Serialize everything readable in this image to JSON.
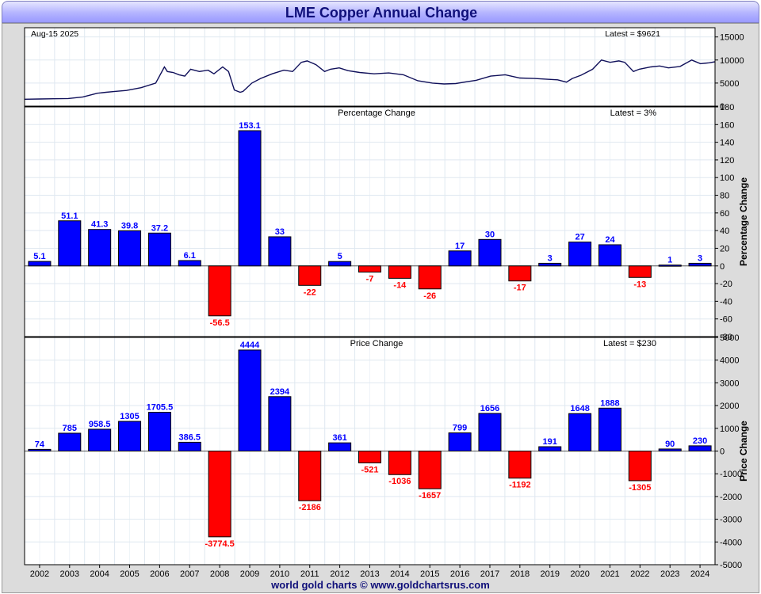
{
  "title": "LME Copper Annual Change",
  "footer": "world gold charts © www.goldchartsrus.com",
  "colors": {
    "positive": "#0000ff",
    "negative": "#ff0000",
    "line": "#10105a",
    "title": "#10107a"
  },
  "chart_data": [
    {
      "type": "line",
      "name": "price",
      "date_label": "Aug-15  2025",
      "latest_label": "Latest = $9621",
      "ylim": [
        0,
        17000
      ],
      "yticks": [
        0,
        5000,
        10000,
        15000
      ],
      "x_range": [
        2001.5,
        2025.2
      ],
      "x": [
        2001.5,
        2002.0,
        2002.5,
        2003.0,
        2003.5,
        2004.0,
        2004.3,
        2004.6,
        2005.0,
        2005.5,
        2006.0,
        2006.3,
        2006.4,
        2006.6,
        2006.8,
        2007.0,
        2007.2,
        2007.5,
        2007.8,
        2008.0,
        2008.3,
        2008.5,
        2008.7,
        2008.9,
        2009.0,
        2009.3,
        2009.6,
        2010.0,
        2010.4,
        2010.7,
        2011.0,
        2011.2,
        2011.5,
        2011.8,
        2012.0,
        2012.3,
        2012.6,
        2013.0,
        2013.5,
        2014.0,
        2014.5,
        2015.0,
        2015.5,
        2015.9,
        2016.3,
        2016.7,
        2017.0,
        2017.5,
        2018.0,
        2018.5,
        2019.0,
        2019.5,
        2019.8,
        2020.1,
        2020.3,
        2020.6,
        2021.0,
        2021.3,
        2021.6,
        2021.9,
        2022.1,
        2022.4,
        2022.6,
        2023.0,
        2023.3,
        2023.6,
        2024.0,
        2024.4,
        2024.7,
        2025.0,
        2025.2
      ],
      "values": [
        1500,
        1550,
        1600,
        1650,
        2000,
        2800,
        3000,
        3200,
        3400,
        4000,
        5000,
        8500,
        7500,
        7300,
        6800,
        6500,
        8000,
        7500,
        7800,
        7000,
        8500,
        7500,
        3500,
        3000,
        3200,
        5000,
        6000,
        7000,
        7800,
        7500,
        9500,
        9800,
        9000,
        7500,
        8000,
        8300,
        7700,
        7300,
        7000,
        7200,
        6800,
        5500,
        5000,
        4800,
        4900,
        5300,
        5600,
        6500,
        6800,
        6100,
        6000,
        5800,
        5700,
        5200,
        6000,
        6700,
        8000,
        10000,
        9500,
        9800,
        9500,
        7500,
        8000,
        8500,
        8700,
        8300,
        8600,
        10000,
        9200,
        9400,
        9621
      ]
    },
    {
      "type": "bar",
      "name": "percentage",
      "title": "Percentage Change",
      "latest_label": "Latest = 3%",
      "ylabel": "Percentage Change",
      "ylim": [
        -80,
        180
      ],
      "yticks": [
        -80,
        -60,
        -40,
        -20,
        0,
        20,
        40,
        60,
        80,
        100,
        120,
        140,
        160,
        180
      ],
      "categories": [
        "2002",
        "2003",
        "2004",
        "2005",
        "2006",
        "2007",
        "2008",
        "2009",
        "2010",
        "2011",
        "2012",
        "2013",
        "2014",
        "2015",
        "2016",
        "2017",
        "2018",
        "2019",
        "2020",
        "2021",
        "2022",
        "2023",
        "2024"
      ],
      "values": [
        5.1,
        51.1,
        41.3,
        39.8,
        37.2,
        6.1,
        -56.5,
        153.1,
        33,
        -22,
        5,
        -7,
        -14,
        -26,
        17,
        30,
        -17,
        3,
        27,
        24,
        -13,
        1,
        3
      ],
      "labels": [
        "5.1",
        "51.1",
        "41.3",
        "39.8",
        "37.2",
        "6.1",
        "-56.5",
        "153.1",
        "33",
        "-22",
        "5",
        "-7",
        "-14",
        "-26",
        "17",
        "30",
        "-17",
        "3",
        "27",
        "24",
        "-13",
        "1",
        "3"
      ]
    },
    {
      "type": "bar",
      "name": "price-change",
      "title": "Price Change",
      "latest_label": "Latest = $230",
      "ylabel": "Price Change",
      "ylim": [
        -5000,
        5000
      ],
      "yticks": [
        -5000,
        -4000,
        -3000,
        -2000,
        -1000,
        0,
        1000,
        2000,
        3000,
        4000,
        5000
      ],
      "categories": [
        "2002",
        "2003",
        "2004",
        "2005",
        "2006",
        "2007",
        "2008",
        "2009",
        "2010",
        "2011",
        "2012",
        "2013",
        "2014",
        "2015",
        "2016",
        "2017",
        "2018",
        "2019",
        "2020",
        "2021",
        "2022",
        "2023",
        "2024"
      ],
      "values": [
        74,
        785,
        958.5,
        1305,
        1705.5,
        386.5,
        -3774.5,
        4444,
        2394,
        -2186,
        361,
        -521,
        -1036,
        -1657,
        799,
        1656,
        -1192,
        191,
        1648,
        1888,
        -1305,
        90,
        230
      ],
      "labels": [
        "74",
        "785",
        "958.5",
        "1305",
        "1705.5",
        "386.5",
        "-3774.5",
        "4444",
        "2394",
        "-2186",
        "361",
        "-521",
        "-1036",
        "-1657",
        "799",
        "1656",
        "-1192",
        "191",
        "1648",
        "1888",
        "-1305",
        "90",
        "230"
      ]
    }
  ],
  "x_axis": {
    "labels": [
      "2002",
      "2003",
      "2004",
      "2005",
      "2006",
      "2007",
      "2008",
      "2009",
      "2010",
      "2011",
      "2012",
      "2013",
      "2014",
      "2015",
      "2016",
      "2017",
      "2018",
      "2019",
      "2020",
      "2021",
      "2022",
      "2023",
      "2024"
    ]
  }
}
